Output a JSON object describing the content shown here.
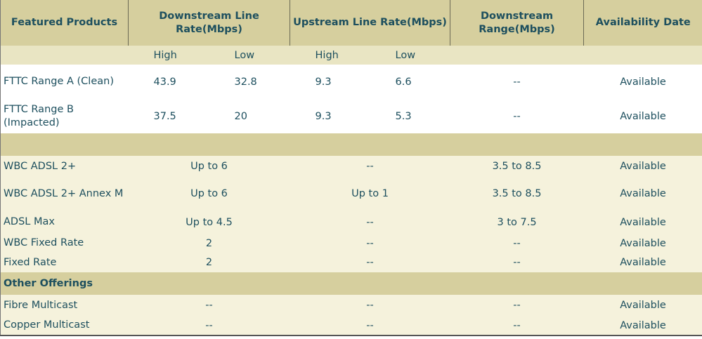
{
  "header": {
    "columns": [
      "Featured Products",
      "Downstream Line Rate(Mbps)",
      "Upstream Line Rate(Mbps)",
      "Downstream Range(Mbps)",
      "Availability Date"
    ],
    "subheader": [
      "High",
      "Low",
      "High",
      "Low"
    ]
  },
  "fttc_rows": [
    {
      "label": "FTTC Range A (Clean)",
      "cells": [
        "43.9",
        "32.8",
        "9.3",
        "6.6",
        "--",
        "Available"
      ]
    },
    {
      "label": "FTTC Range B (Impacted)",
      "cells": [
        "37.5",
        "20",
        "9.3",
        "5.3",
        "--",
        "Available"
      ]
    }
  ],
  "adsl_rows": [
    {
      "label": "WBC ADSL 2+",
      "cells": [
        "Up to 6",
        "--",
        "3.5 to 8.5",
        "Available"
      ]
    },
    {
      "label": "WBC ADSL 2+ Annex M",
      "cells": [
        "Up to 6",
        "Up to 1",
        "3.5 to 8.5",
        "Available"
      ]
    },
    {
      "label": "ADSL Max",
      "cells": [
        "Up to 4.5",
        "--",
        "3 to 7.5",
        "Available"
      ]
    },
    {
      "label": "WBC Fixed Rate",
      "cells": [
        "2",
        "--",
        "--",
        "Available"
      ]
    },
    {
      "label": "Fixed Rate",
      "cells": [
        "2",
        "--",
        "--",
        "Available"
      ]
    }
  ],
  "other": {
    "title": "Other Offerings",
    "rows": [
      {
        "label": "Fibre Multicast",
        "cells": [
          "--",
          "--",
          "--",
          "Available"
        ]
      },
      {
        "label": "Copper Multicast",
        "cells": [
          "--",
          "--",
          "--",
          "Available"
        ]
      }
    ]
  }
}
